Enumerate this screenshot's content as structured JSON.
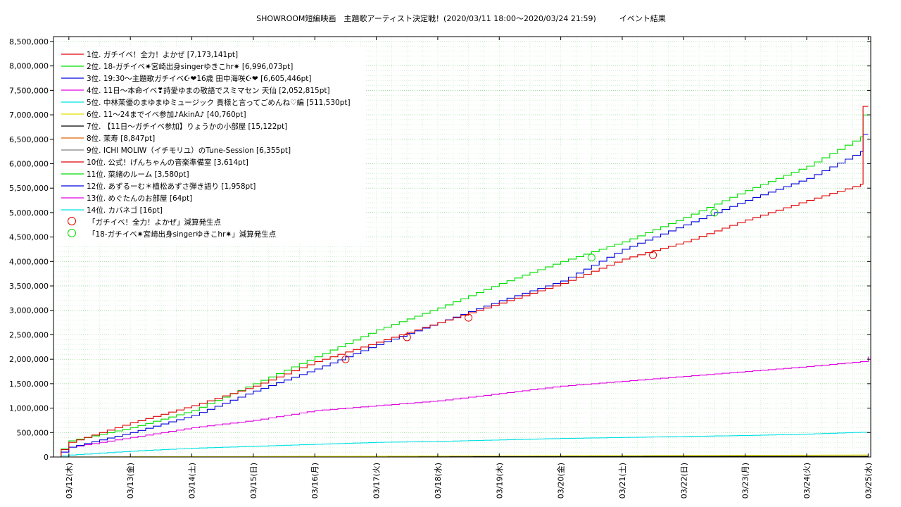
{
  "chart_data": {
    "type": "line",
    "title": "SHOWROOM短編映画　主題歌アーティスト決定戦！(2020/03/11 18:00〜2020/03/24 21:59)　　　イベント結果",
    "xlabel": "",
    "ylabel": "",
    "x_ticks": [
      "03/12(木)",
      "03/13(金)",
      "03/14(土)",
      "03/15(日)",
      "03/16(月)",
      "03/17(火)",
      "03/18(水)",
      "03/19(木)",
      "03/20(金)",
      "03/21(土)",
      "03/22(日)",
      "03/23(月)",
      "03/24(火)",
      "03/25(水)"
    ],
    "y_ticks": [
      "0",
      "500,000",
      "1,000,000",
      "1,500,000",
      "2,000,000",
      "2,500,000",
      "3,000,000",
      "3,500,000",
      "4,000,000",
      "4,500,000",
      "5,000,000",
      "5,500,000",
      "6,000,000",
      "6,500,000",
      "7,000,000",
      "7,500,000",
      "8,000,000",
      "8,500,000"
    ],
    "ylim": [
      0,
      8600000
    ],
    "xlim": [
      "2020-03-11 18:00",
      "2020-03-25 01:00"
    ],
    "grid": true,
    "legend_position": "top-left",
    "series": [
      {
        "name": "1位. ガチイベ！全力！よかぜ [7,173,141pt]",
        "color": "#e00000",
        "x": [
          "2020-03-11 18:00",
          "2020-03-12 00:00",
          "2020-03-13 00:00",
          "2020-03-14 00:00",
          "2020-03-15 00:00",
          "2020-03-16 00:00",
          "2020-03-17 00:00",
          "2020-03-18 00:00",
          "2020-03-19 00:00",
          "2020-03-20 00:00",
          "2020-03-21 00:00",
          "2020-03-22 00:00",
          "2020-03-23 00:00",
          "2020-03-24 00:00",
          "2020-03-24 21:00",
          "2020-03-24 22:00",
          "2020-03-25 00:00"
        ],
        "y": [
          0,
          300000,
          700000,
          1050000,
          1450000,
          1950000,
          2350000,
          2750000,
          3150000,
          3550000,
          4050000,
          4400000,
          4850000,
          5250000,
          5580000,
          7173141,
          7173141
        ]
      },
      {
        "name": "2位. 18-ガチイベ✷宮崎出身singerゆきこhr✷ [6,996,073pt]",
        "color": "#00dd00",
        "x": [
          "2020-03-11 18:00",
          "2020-03-12 00:00",
          "2020-03-13 00:00",
          "2020-03-14 00:00",
          "2020-03-15 00:00",
          "2020-03-16 00:00",
          "2020-03-17 00:00",
          "2020-03-18 00:00",
          "2020-03-19 00:00",
          "2020-03-20 00:00",
          "2020-03-21 00:00",
          "2020-03-22 00:00",
          "2020-03-23 00:00",
          "2020-03-24 00:00",
          "2020-03-24 21:00",
          "2020-03-24 22:00",
          "2020-03-25 00:00"
        ],
        "y": [
          0,
          330000,
          600000,
          950000,
          1500000,
          2050000,
          2600000,
          3050000,
          3550000,
          4000000,
          4400000,
          4900000,
          5450000,
          5950000,
          6550000,
          6996073,
          6996073
        ]
      },
      {
        "name": "3位. 19:30〜主題歌ガチイベ☪❤16歳 田中海咲☪❤ [6,605,446pt]",
        "color": "#0000dd",
        "x": [
          "2020-03-11 18:00",
          "2020-03-12 00:00",
          "2020-03-13 00:00",
          "2020-03-14 00:00",
          "2020-03-15 00:00",
          "2020-03-16 00:00",
          "2020-03-17 00:00",
          "2020-03-18 00:00",
          "2020-03-19 00:00",
          "2020-03-20 00:00",
          "2020-03-21 00:00",
          "2020-03-22 00:00",
          "2020-03-23 00:00",
          "2020-03-24 00:00",
          "2020-03-24 21:00",
          "2020-03-24 22:00",
          "2020-03-25 00:00"
        ],
        "y": [
          0,
          200000,
          500000,
          850000,
          1350000,
          1800000,
          2300000,
          2750000,
          3200000,
          3600000,
          4250000,
          4750000,
          5250000,
          5700000,
          6250000,
          6605446,
          6605446
        ]
      },
      {
        "name": "4位. 11日〜本命イベ❣詩愛ゆまの敬語でスミマセン 天仙 [2,052,815pt]",
        "color": "#e000e0",
        "x": [
          "2020-03-11 18:00",
          "2020-03-12 00:00",
          "2020-03-13 00:00",
          "2020-03-14 00:00",
          "2020-03-15 00:00",
          "2020-03-16 00:00",
          "2020-03-17 00:00",
          "2020-03-18 00:00",
          "2020-03-19 00:00",
          "2020-03-20 00:00",
          "2020-03-21 00:00",
          "2020-03-22 00:00",
          "2020-03-23 00:00",
          "2020-03-24 00:00",
          "2020-03-24 21:00",
          "2020-03-25 00:00"
        ],
        "y": [
          0,
          200000,
          400000,
          600000,
          750000,
          950000,
          1050000,
          1150000,
          1300000,
          1450000,
          1550000,
          1650000,
          1750000,
          1850000,
          1950000,
          2052815
        ]
      },
      {
        "name": "5位. 中林茉優のまゆまゆミュージック 貴様と言ってごめんね♡編 [511,530pt]",
        "color": "#00e0e0",
        "x": [
          "2020-03-11 18:00",
          "2020-03-12 00:00",
          "2020-03-13 00:00",
          "2020-03-14 00:00",
          "2020-03-15 00:00",
          "2020-03-16 00:00",
          "2020-03-17 00:00",
          "2020-03-18 00:00",
          "2020-03-19 00:00",
          "2020-03-20 00:00",
          "2020-03-21 00:00",
          "2020-03-22 00:00",
          "2020-03-23 00:00",
          "2020-03-24 00:00",
          "2020-03-25 00:00"
        ],
        "y": [
          0,
          40000,
          120000,
          180000,
          220000,
          260000,
          300000,
          320000,
          350000,
          380000,
          400000,
          420000,
          440000,
          470000,
          511530
        ]
      },
      {
        "name": "6位. 11〜24までイベ参加♪AkinA♪ [40,760pt]",
        "color": "#e0e000",
        "x": [
          "2020-03-11 18:00",
          "2020-03-25 00:00"
        ],
        "y": [
          0,
          40760
        ]
      },
      {
        "name": "7位. 【11日〜ガチイベ参加】りょうかの小部屋 [15,122pt]",
        "color": "#000000",
        "x": [
          "2020-03-11 18:00",
          "2020-03-25 00:00"
        ],
        "y": [
          0,
          15122
        ]
      },
      {
        "name": "8位. 茉寿 [8,847pt]",
        "color": "#e06000",
        "x": [
          "2020-03-11 18:00",
          "2020-03-25 00:00"
        ],
        "y": [
          0,
          8847
        ]
      },
      {
        "name": "9位. ICHI MOLIW（イチモリユ）のTune-Session [6,355pt]",
        "color": "#808080",
        "x": [
          "2020-03-11 18:00",
          "2020-03-25 00:00"
        ],
        "y": [
          0,
          6355
        ]
      },
      {
        "name": "10位. 公式！げんちゃんの音楽準備室 [3,614pt]",
        "color": "#e00000",
        "x": [
          "2020-03-11 18:00",
          "2020-03-25 00:00"
        ],
        "y": [
          0,
          3614
        ]
      },
      {
        "name": "11位. 菜緒のルーム [3,580pt]",
        "color": "#00dd00",
        "x": [
          "2020-03-11 18:00",
          "2020-03-25 00:00"
        ],
        "y": [
          0,
          3580
        ]
      },
      {
        "name": "12位. あずるーむ＊植松あずさ弾き語り [1,958pt]",
        "color": "#0000dd",
        "x": [
          "2020-03-11 18:00",
          "2020-03-25 00:00"
        ],
        "y": [
          0,
          1958
        ]
      },
      {
        "name": "13位. めぐたんのお部屋 [64pt]",
        "color": "#e000e0",
        "x": [
          "2020-03-11 18:00",
          "2020-03-25 00:00"
        ],
        "y": [
          0,
          64
        ]
      },
      {
        "name": "14位. カバネゴ [16pt]",
        "color": "#00e0e0",
        "x": [
          "2020-03-11 18:00",
          "2020-03-25 00:00"
        ],
        "y": [
          0,
          16
        ]
      }
    ],
    "markers": [
      {
        "name": "「ガチイベ！全力！よかぜ」減算発生点",
        "color": "#e00000",
        "x": [
          "2020-03-16 12:00",
          "2020-03-17 12:00",
          "2020-03-18 12:00",
          "2020-03-21 12:00"
        ],
        "y": [
          2000000,
          2450000,
          2850000,
          4130000
        ]
      },
      {
        "name": "「18-ガチイベ✷宮崎出身singerゆきこhr✷」減算発生点",
        "color": "#00dd00",
        "x": [
          "2020-03-20 12:00",
          "2020-03-22 12:00"
        ],
        "y": [
          4080000,
          5000000
        ]
      }
    ]
  }
}
